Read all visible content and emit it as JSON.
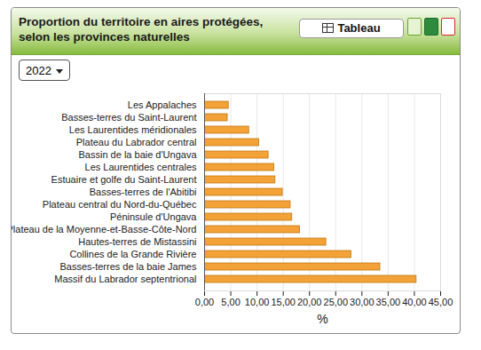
{
  "chart_data": {
    "type": "bar",
    "title": "Proportion du territoire en aires protégées, selon les provinces naturelles",
    "orientation": "horizontal",
    "categories": [
      "Les Appalaches",
      "Basses-terres du Saint-Laurent",
      "Les Laurentides méridionales",
      "Plateau du Labrador central",
      "Bassin de la baie d'Ungava",
      "Les Laurentides centrales",
      "Estuaire et golfe du Saint-Laurent",
      "Basses-terres de l'Abitibi",
      "Plateau central du Nord-du-Québec",
      "Péninsule d'Ungava",
      "Plateau de la Moyenne-et-Basse-Côte-Nord",
      "Hautes-terres de Mistassini",
      "Collines de la Grande Rivière",
      "Basses-terres de la baie James",
      "Massif du Labrador septentrional"
    ],
    "values": [
      4.6,
      4.4,
      8.5,
      10.4,
      12.2,
      13.3,
      13.5,
      14.9,
      16.4,
      16.7,
      18.2,
      23.2,
      28.0,
      33.5,
      40.4
    ],
    "color": "#f2a236",
    "xlabel": "%",
    "xlim": [
      0,
      45
    ],
    "xticks": [
      {
        "value": 0,
        "label": "0,00"
      },
      {
        "value": 5,
        "label": "5,00"
      },
      {
        "value": 10,
        "label": "10,00"
      },
      {
        "value": 15,
        "label": "15,00"
      },
      {
        "value": 20,
        "label": "20,00"
      },
      {
        "value": 25,
        "label": "25,00"
      },
      {
        "value": 30,
        "label": "30,00"
      },
      {
        "value": 35,
        "label": "35,00"
      },
      {
        "value": 40,
        "label": "40,00"
      },
      {
        "value": 45,
        "label": "45,00"
      }
    ],
    "grid": true
  },
  "controls": {
    "button": "Tableau",
    "select": "2022"
  }
}
